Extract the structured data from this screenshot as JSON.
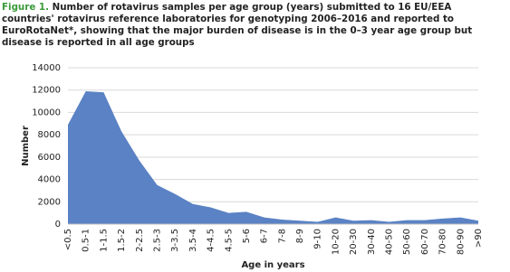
{
  "chart_data": {
    "type": "area",
    "figure_label": "Figure 1.",
    "title": "Number of rotavirus samples per age group (years) submitted to 16 EU/EEA countries' rotavirus reference laboratories for genotyping 2006–2016 and reported to EuroRotaNet*, showing that the major burden of disease is in the 0–3 year age group but disease is reported in all age groups",
    "y_label": "Number",
    "x_label": "Age in years",
    "categories": [
      "<0.5",
      "0.5-1",
      "1-1.5",
      "1.5-2",
      "2-2.5",
      "2.5-3",
      "3-3.5",
      "3.5-4",
      "4-4.5",
      "4.5-5",
      "5-6",
      "6-7",
      "7-8",
      "8-9",
      "9-10",
      "10-20",
      "20-30",
      "30-40",
      "40-50",
      "50-60",
      "60-70",
      "70-80",
      "80-90",
      ">90"
    ],
    "values": [
      8900,
      11900,
      11800,
      8300,
      5700,
      3500,
      2700,
      1800,
      1500,
      1000,
      1100,
      600,
      400,
      300,
      200,
      600,
      300,
      350,
      200,
      350,
      350,
      500,
      600,
      300
    ],
    "color": "#5a82c4",
    "ylim": [
      0,
      14000
    ],
    "yticks": [
      0,
      2000,
      4000,
      6000,
      8000,
      10000,
      12000,
      14000
    ],
    "grid": true
  }
}
